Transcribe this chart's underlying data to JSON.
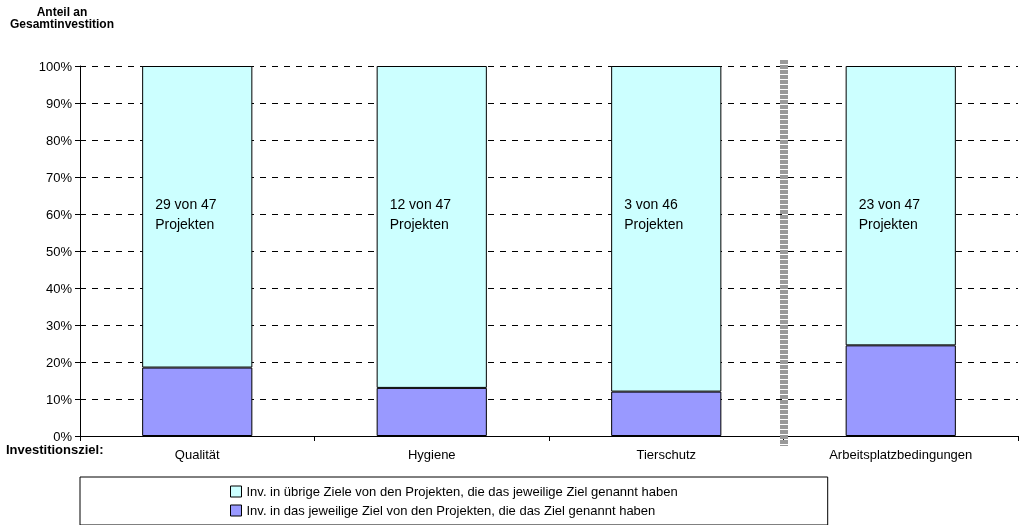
{
  "chart_data": {
    "type": "bar",
    "stacked": true,
    "ylabel": "Anteil an\nGesamtinvestition",
    "xlabel": "Investitionsziel:",
    "categories": [
      "Qualität",
      "Hygiene",
      "Tierschutz",
      "Arbeitsplatzbedingungen"
    ],
    "series": [
      {
        "name": "Inv. in das jeweilige Ziel von den Projekten, die das Ziel genannt haben",
        "color": "#9999ff",
        "values": [
          18.5,
          13,
          12,
          24.5
        ]
      },
      {
        "name": "Inv. in übrige Ziele von den Projekten, die das jeweilige Ziel genannt haben",
        "color": "#ccffff",
        "values": [
          81.5,
          87,
          88,
          75.5
        ]
      }
    ],
    "ylim": [
      0,
      100
    ],
    "yticks": [
      {
        "value": 0,
        "label": "0%"
      },
      {
        "value": 10,
        "label": "10%"
      },
      {
        "value": 20,
        "label": "20%"
      },
      {
        "value": 30,
        "label": "30%"
      },
      {
        "value": 40,
        "label": "40%"
      },
      {
        "value": 50,
        "label": "50%"
      },
      {
        "value": 60,
        "label": "60%"
      },
      {
        "value": 70,
        "label": "70%"
      },
      {
        "value": 80,
        "label": "80%"
      },
      {
        "value": 90,
        "label": "90%"
      },
      {
        "value": 100,
        "label": "100%"
      }
    ],
    "grid": "y",
    "legend": "bottom",
    "annotations": [
      "29 von 47\nProjekten",
      "12 von 47\nProjekten",
      "3 von 46\nProjekten",
      "23 von 47\nProjekten"
    ]
  }
}
